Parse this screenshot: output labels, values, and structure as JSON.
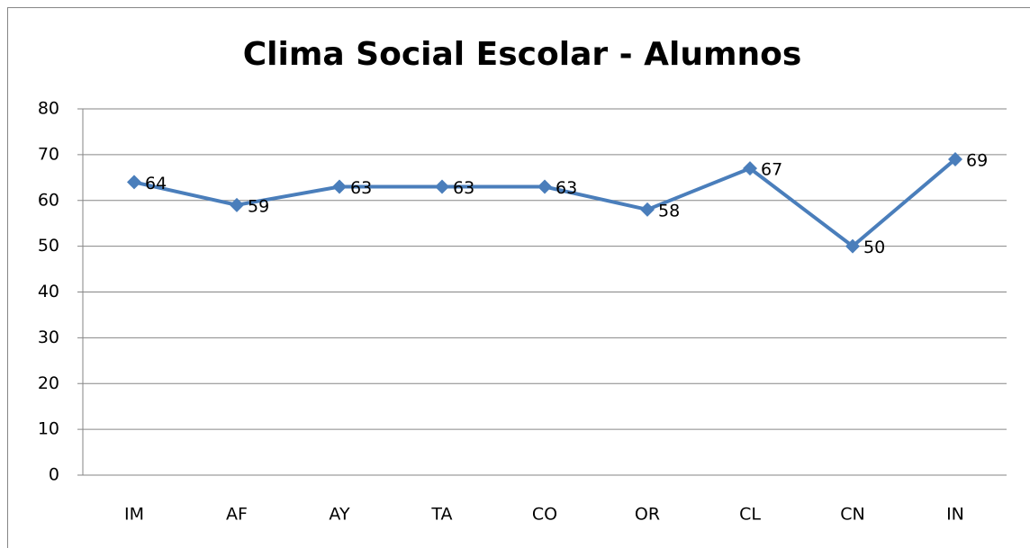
{
  "chart_data": {
    "type": "line",
    "title": "Clima Social Escolar - Alumnos",
    "categories": [
      "IM",
      "AF",
      "AY",
      "TA",
      "CO",
      "OR",
      "CL",
      "CN",
      "IN"
    ],
    "series": [
      {
        "name": "Alumnos",
        "color": "#4a7ebb",
        "values": [
          64,
          59,
          63,
          63,
          63,
          58,
          67,
          50,
          69
        ]
      }
    ],
    "ylim": [
      0,
      80
    ],
    "yticks": [
      0,
      10,
      20,
      30,
      40,
      50,
      60,
      70,
      80
    ],
    "grid": true
  }
}
